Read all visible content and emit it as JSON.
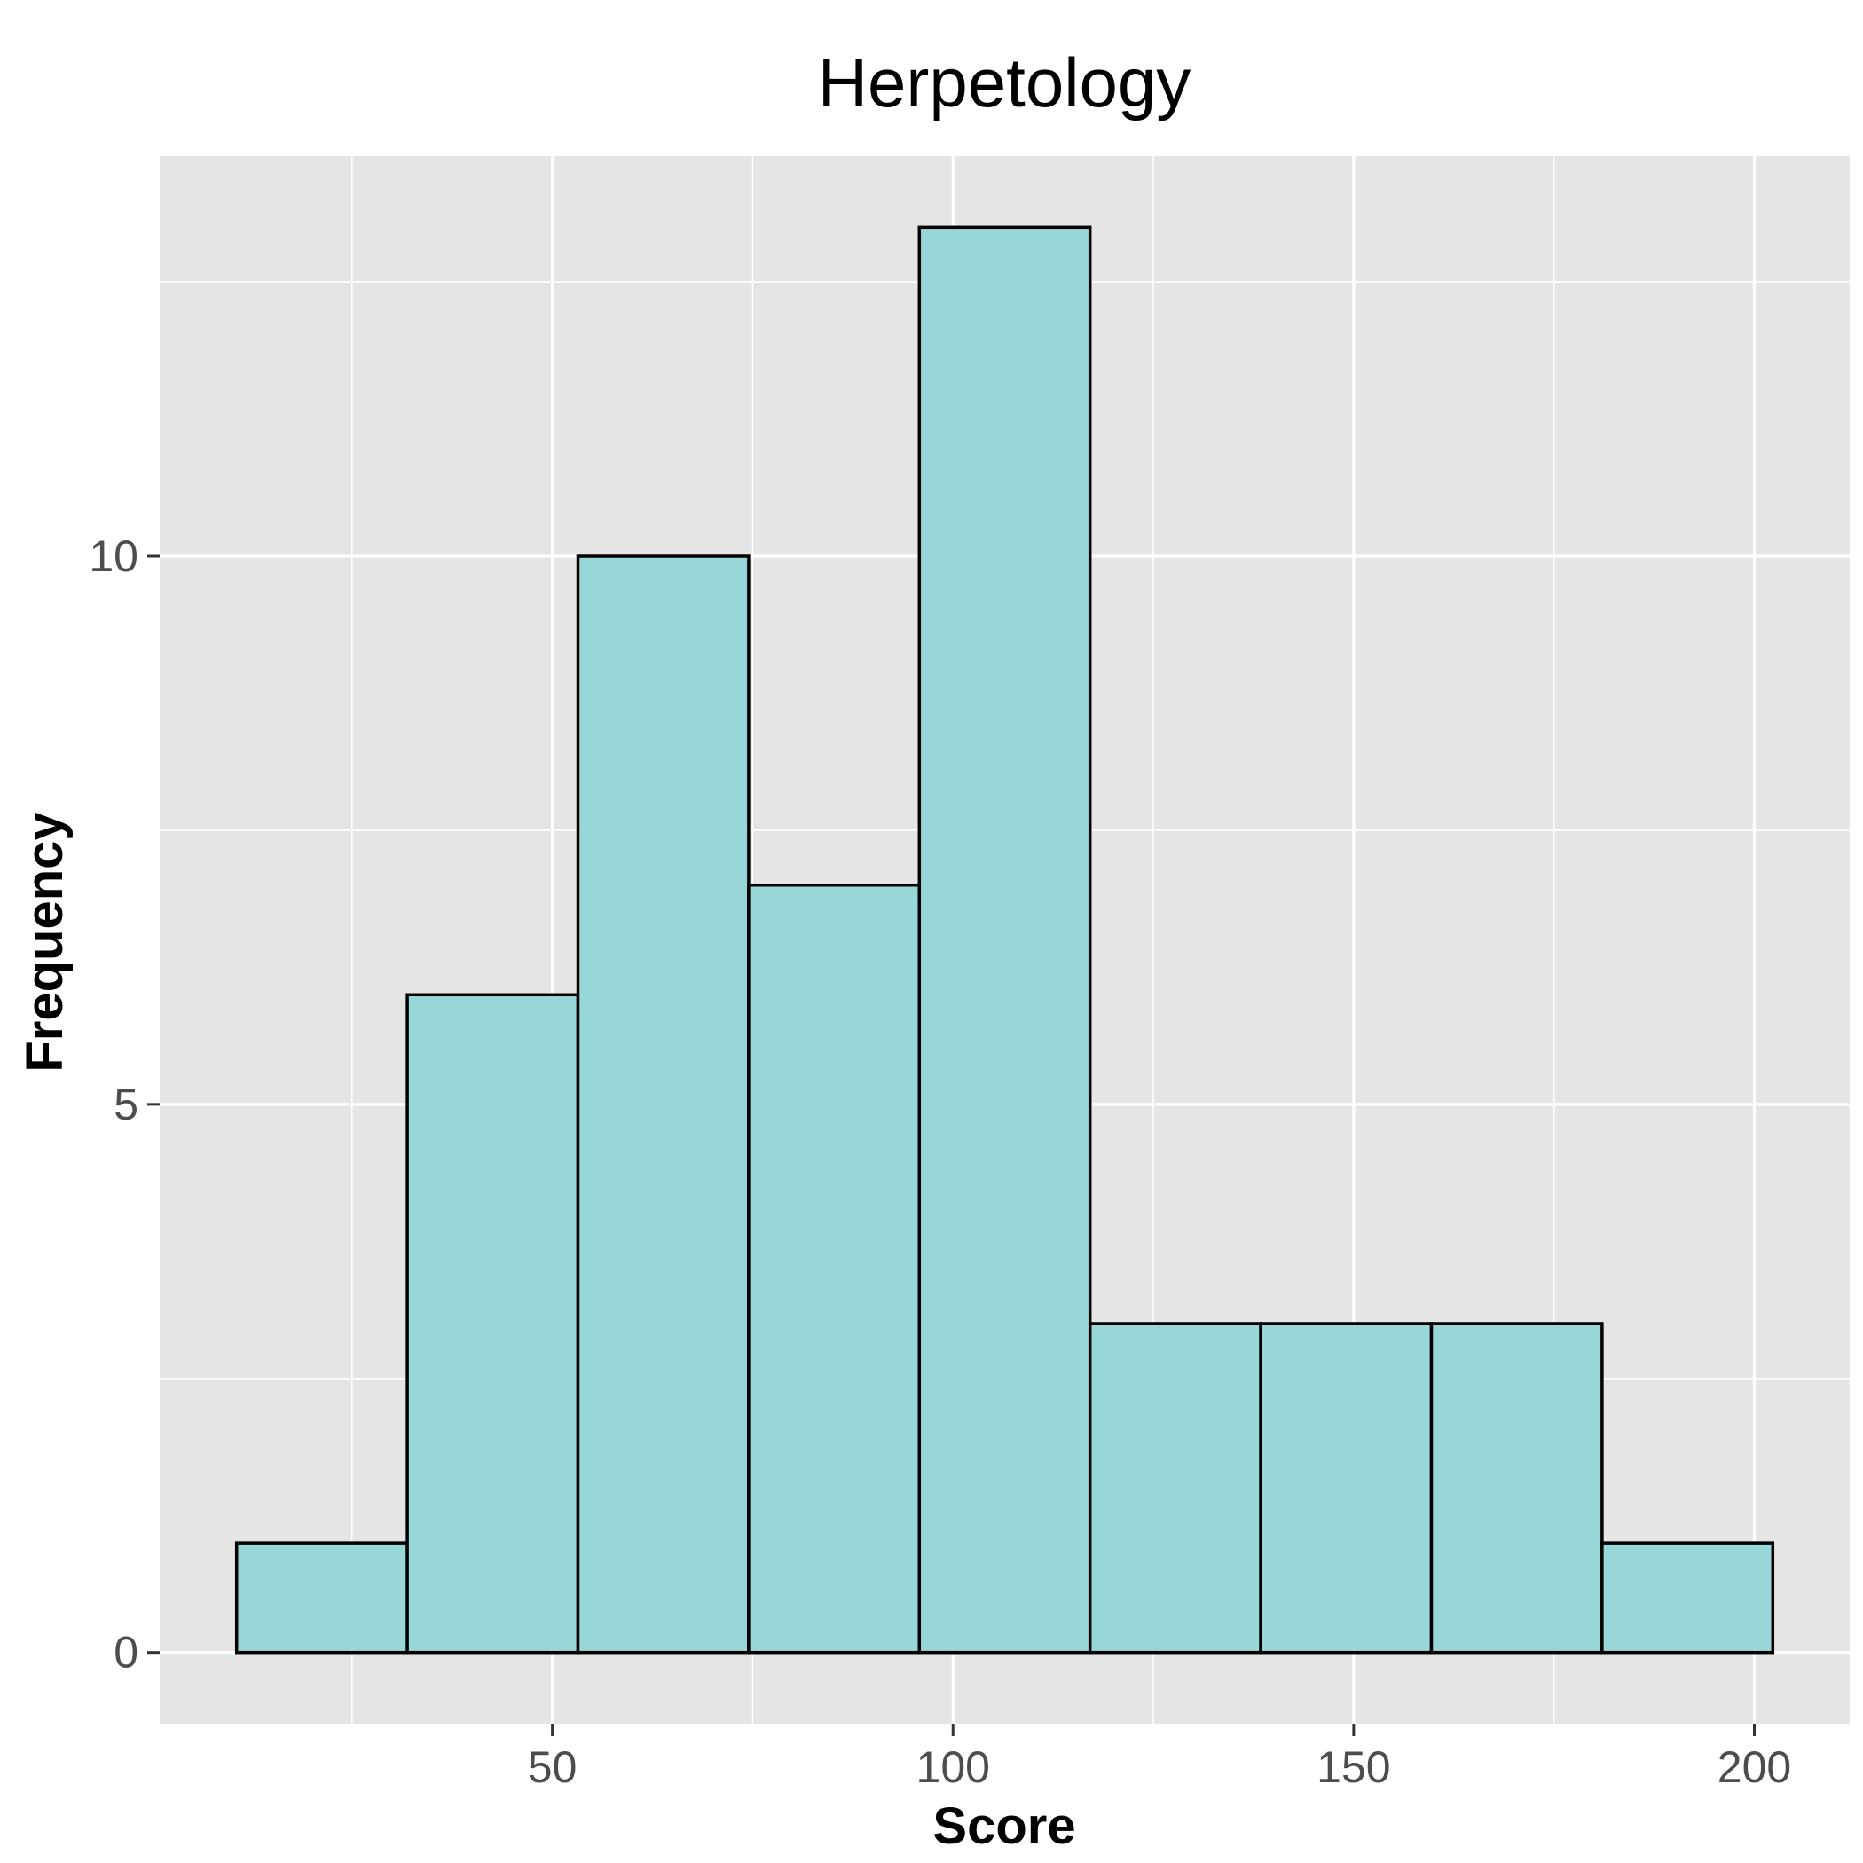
{
  "chart_data": {
    "type": "bar",
    "title": "Herpetology",
    "xlabel": "Score",
    "ylabel": "Frequency",
    "bins": [
      {
        "start": 10.6,
        "end": 31.9,
        "count": 1
      },
      {
        "start": 31.9,
        "end": 53.2,
        "count": 6
      },
      {
        "start": 53.2,
        "end": 74.5,
        "count": 10
      },
      {
        "start": 74.5,
        "end": 95.8,
        "count": 7
      },
      {
        "start": 95.8,
        "end": 117.1,
        "count": 13
      },
      {
        "start": 117.1,
        "end": 138.4,
        "count": 3
      },
      {
        "start": 138.4,
        "end": 159.7,
        "count": 3
      },
      {
        "start": 159.7,
        "end": 181.0,
        "count": 3
      },
      {
        "start": 181.0,
        "end": 202.3,
        "count": 1
      }
    ],
    "xlim": [
      1.0,
      211.9
    ],
    "ylim": [
      -0.65,
      13.65
    ],
    "x_ticks": [
      50,
      100,
      150,
      200
    ],
    "x_tick_labels": [
      "50",
      "100",
      "150",
      "200"
    ],
    "y_ticks": [
      0,
      5,
      10
    ],
    "y_tick_labels": [
      "0",
      "5",
      "10"
    ],
    "grid": true,
    "colors": {
      "panel_background": "#e5e5e5",
      "grid": "#ffffff",
      "bar_fill": "#97d7d7",
      "bar_stroke": "#000000",
      "tick_text": "#4d4d4d"
    }
  }
}
